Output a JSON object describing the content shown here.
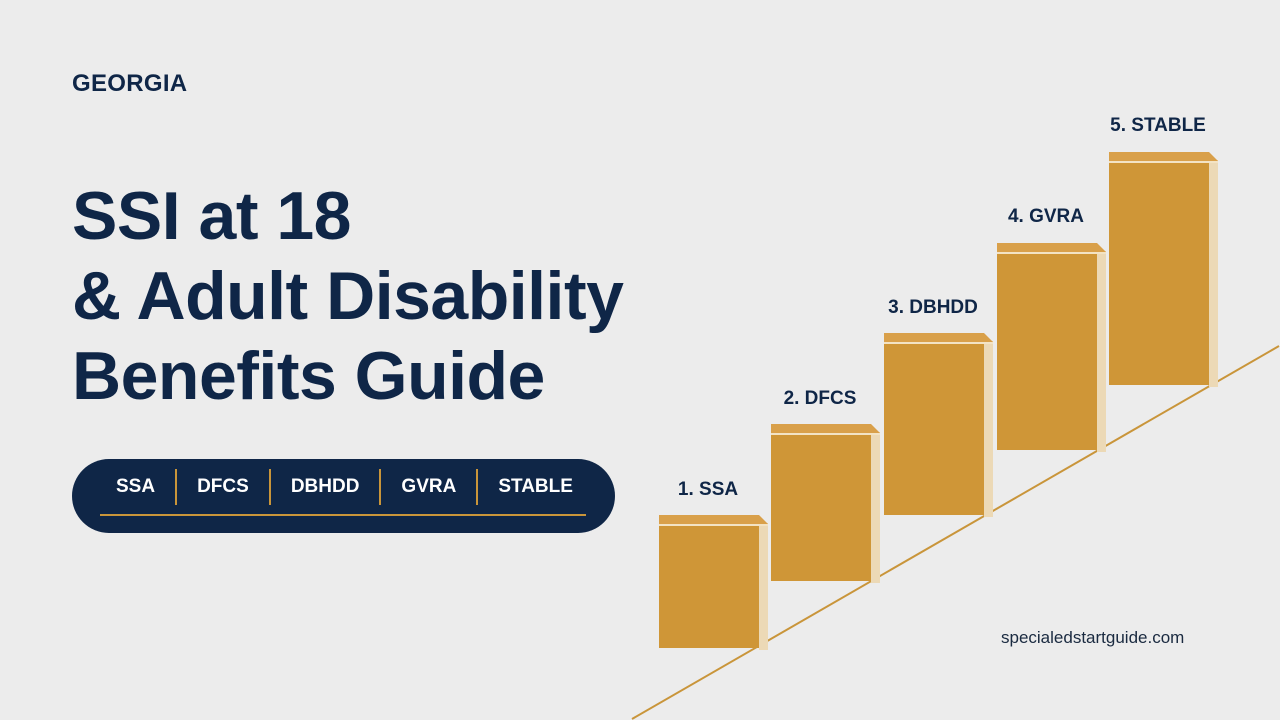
{
  "header": {
    "state": "GEORGIA"
  },
  "title": {
    "line1": "SSI at 18",
    "line2": "& Adult Disability",
    "line3": "Benefits Guide"
  },
  "agency_bar": {
    "items": [
      "SSA",
      "DFCS",
      "DBHDD",
      "GVRA",
      "STABLE"
    ]
  },
  "steps": [
    {
      "label": "1. SSA"
    },
    {
      "label": "2. DFCS"
    },
    {
      "label": "3. DBHDD"
    },
    {
      "label": "4. GVRA"
    },
    {
      "label": "5. STABLE"
    }
  ],
  "footer": {
    "website": "specialedstartguide.com"
  },
  "colors": {
    "navy": "#0f2647",
    "gold": "#cf9637",
    "gold_top": "#d9a04a",
    "gold_shadow": "#ecd9b6",
    "line": "#c9953a",
    "background": "#ececec"
  }
}
